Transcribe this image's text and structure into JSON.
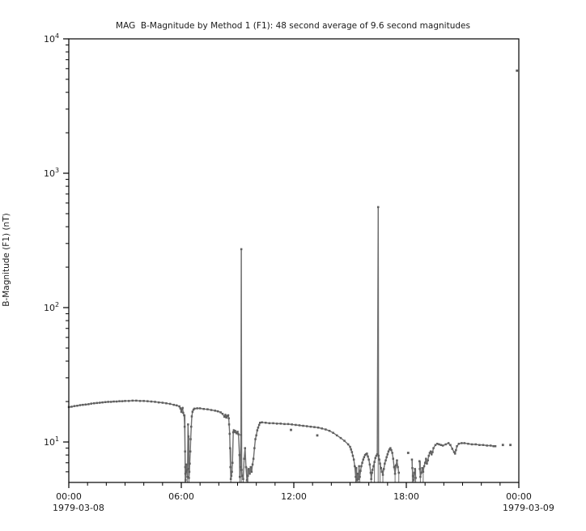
{
  "title": "MAG  B-Magnitude by Method 1 (F1): 48 second average of 9.6 second magnitudes",
  "colors": {
    "marker": "#5f5f5f",
    "line": "#6e6e6e",
    "axis": "#000000",
    "background": "#ffffff",
    "text": "#1a1a1a"
  },
  "chart_data": {
    "type": "scatter",
    "title": "MAG  B-Magnitude by Method 1 (F1): 48 second average of 9.6 second magnitudes",
    "ylabel": "B-Magnitude (F1) (nT)",
    "yscale": "log",
    "ylim": [
      5,
      10000
    ],
    "xlim_hours": [
      0,
      24
    ],
    "grid": false,
    "legend": "none",
    "x_date_left": "1979-03-08",
    "x_date_right": "1979-03-09",
    "x_ticks": [
      {
        "hour": 0,
        "label": "00:00"
      },
      {
        "hour": 6,
        "label": "06:00"
      },
      {
        "hour": 12,
        "label": "12:00"
      },
      {
        "hour": 18,
        "label": "18:00"
      },
      {
        "hour": 24,
        "label": "00:00"
      }
    ],
    "y_ticks": [
      {
        "value": 10,
        "base": "10",
        "exp": "1"
      },
      {
        "value": 100,
        "base": "10",
        "exp": "2"
      },
      {
        "value": 1000,
        "base": "10",
        "exp": "3"
      },
      {
        "value": 10000,
        "base": "10",
        "exp": "4"
      }
    ],
    "spikes": [
      [
        9.2,
        272
      ],
      [
        16.5,
        560
      ],
      [
        23.9,
        5800
      ]
    ],
    "segments": [
      [
        [
          0,
          18.2
        ],
        [
          0.15,
          18.3
        ],
        [
          0.3,
          18.5
        ],
        [
          0.45,
          18.6
        ],
        [
          0.6,
          18.8
        ],
        [
          0.75,
          18.9
        ],
        [
          0.9,
          19
        ],
        [
          1.05,
          19.1
        ],
        [
          1.2,
          19.3
        ],
        [
          1.35,
          19.4
        ],
        [
          1.5,
          19.5
        ],
        [
          1.65,
          19.6
        ],
        [
          1.8,
          19.7
        ],
        [
          1.95,
          19.8
        ],
        [
          2.1,
          19.9
        ],
        [
          2.25,
          19.9
        ],
        [
          2.4,
          20
        ],
        [
          2.55,
          20
        ],
        [
          2.7,
          20.1
        ],
        [
          2.85,
          20.1
        ],
        [
          3,
          20.2
        ],
        [
          3.2,
          20.2
        ],
        [
          3.4,
          20.3
        ],
        [
          3.6,
          20.3
        ],
        [
          3.8,
          20.2
        ],
        [
          4,
          20.2
        ],
        [
          4.2,
          20.1
        ],
        [
          4.4,
          20
        ],
        [
          4.6,
          19.9
        ],
        [
          4.8,
          19.7
        ],
        [
          5,
          19.6
        ],
        [
          5.2,
          19.4
        ],
        [
          5.4,
          19.2
        ],
        [
          5.6,
          18.9
        ],
        [
          5.75,
          18.7
        ],
        [
          5.9,
          18.4
        ],
        [
          5.95,
          17.8
        ],
        [
          6,
          16.8
        ],
        [
          6.03,
          17.5
        ],
        [
          6.07,
          17.9
        ],
        [
          6.1,
          16.5
        ],
        [
          6.15,
          15.8
        ],
        [
          6.18,
          13
        ],
        [
          6.2,
          8.5
        ],
        [
          6.21,
          6.5
        ],
        [
          6.22,
          5.8
        ],
        [
          6.23,
          5.2
        ],
        [
          6.25,
          6
        ],
        [
          6.28,
          6.8
        ],
        [
          6.3,
          6.2
        ],
        [
          6.33,
          5.5
        ],
        [
          6.36,
          13.5
        ],
        [
          6.38,
          11
        ],
        [
          6.4,
          6.3
        ],
        [
          6.41,
          5.4
        ],
        [
          6.43,
          6
        ],
        [
          6.45,
          6.9
        ],
        [
          6.48,
          8.5
        ],
        [
          6.5,
          10.5
        ],
        [
          6.53,
          13
        ],
        [
          6.56,
          15.5
        ],
        [
          6.6,
          16.8
        ],
        [
          6.65,
          17.4
        ],
        [
          6.7,
          17.7
        ],
        [
          6.85,
          17.8
        ],
        [
          7,
          17.8
        ],
        [
          7.2,
          17.6
        ],
        [
          7.4,
          17.5
        ],
        [
          7.6,
          17.3
        ],
        [
          7.8,
          17.1
        ],
        [
          7.95,
          16.9
        ],
        [
          8.1,
          16.6
        ],
        [
          8.2,
          16.2
        ],
        [
          8.3,
          15.4
        ],
        [
          8.35,
          15.9
        ],
        [
          8.4,
          15.2
        ],
        [
          8.45,
          15.6
        ],
        [
          8.5,
          15.8
        ],
        [
          8.53,
          15
        ],
        [
          8.55,
          13.5
        ],
        [
          8.58,
          11.5
        ],
        [
          8.6,
          9
        ],
        [
          8.62,
          6.5
        ],
        [
          8.64,
          5.3
        ],
        [
          8.67,
          5.6
        ],
        [
          8.7,
          6
        ],
        [
          8.73,
          7
        ],
        [
          8.77,
          11.8
        ],
        [
          8.8,
          12.2
        ],
        [
          8.83,
          11.9
        ],
        [
          8.87,
          12.1
        ],
        [
          8.9,
          11.8
        ],
        [
          8.95,
          11.6
        ],
        [
          9,
          11.9
        ],
        [
          9.05,
          11.4
        ],
        [
          9.1,
          8
        ],
        [
          9.12,
          5.5
        ],
        [
          9.15,
          6.5
        ],
        [
          9.18,
          11.3
        ],
        [
          9.2,
          272
        ],
        [
          9.22,
          6.2
        ],
        [
          9.25,
          5.6
        ],
        [
          9.3,
          5.3
        ],
        [
          9.35,
          7.5
        ],
        [
          9.4,
          9
        ],
        [
          9.45,
          6.5
        ],
        [
          9.5,
          5.2
        ],
        [
          9.55,
          5.6
        ],
        [
          9.6,
          6.3
        ],
        [
          9.65,
          5.8
        ],
        [
          9.7,
          6.5
        ],
        [
          9.75,
          6
        ],
        [
          9.8,
          6.8
        ],
        [
          9.85,
          7.5
        ],
        [
          9.9,
          9
        ],
        [
          9.95,
          10.5
        ],
        [
          10,
          11.2
        ],
        [
          10.05,
          12.2
        ],
        [
          10.1,
          12.8
        ],
        [
          10.15,
          13.4
        ],
        [
          10.2,
          13.9
        ],
        [
          10.3,
          14
        ],
        [
          10.5,
          13.9
        ],
        [
          10.7,
          13.8
        ],
        [
          10.9,
          13.8
        ],
        [
          11.1,
          13.7
        ],
        [
          11.3,
          13.7
        ],
        [
          11.5,
          13.6
        ],
        [
          11.7,
          13.6
        ],
        [
          11.9,
          13.5
        ],
        [
          12.1,
          13.4
        ],
        [
          12.3,
          13.3
        ],
        [
          12.5,
          13.2
        ],
        [
          12.7,
          13.1
        ],
        [
          12.9,
          13
        ],
        [
          13.1,
          12.9
        ],
        [
          13.3,
          12.8
        ],
        [
          13.5,
          12.6
        ],
        [
          13.7,
          12.4
        ],
        [
          13.9,
          12.1
        ],
        [
          14.1,
          11.7
        ],
        [
          14.3,
          11.2
        ],
        [
          14.5,
          10.7
        ],
        [
          14.7,
          10.2
        ],
        [
          14.9,
          9.6
        ],
        [
          15,
          9.2
        ],
        [
          15.05,
          8.8
        ],
        [
          15.1,
          8.4
        ],
        [
          15.15,
          7.9
        ],
        [
          15.2,
          7.4
        ],
        [
          15.25,
          6.6
        ],
        [
          15.3,
          5.5
        ],
        [
          15.33,
          6.4
        ],
        [
          15.36,
          5.2
        ],
        [
          15.4,
          5.8
        ],
        [
          15.44,
          5.3
        ],
        [
          15.48,
          6.6
        ],
        [
          15.52,
          5.5
        ],
        [
          15.56,
          6.1
        ],
        [
          15.6,
          6.6
        ],
        [
          15.65,
          7
        ],
        [
          15.7,
          7.4
        ],
        [
          15.75,
          7.7
        ],
        [
          15.8,
          8
        ],
        [
          15.85,
          8.1
        ],
        [
          15.9,
          8.2
        ],
        [
          15.95,
          7.8
        ],
        [
          16,
          7.4
        ],
        [
          16.05,
          6.8
        ],
        [
          16.1,
          5.9
        ],
        [
          16.13,
          5.3
        ],
        [
          16.17,
          5.9
        ],
        [
          16.2,
          6.2
        ],
        [
          16.25,
          6.6
        ],
        [
          16.3,
          7.1
        ],
        [
          16.35,
          7.6
        ],
        [
          16.4,
          7.9
        ],
        [
          16.45,
          8.1
        ],
        [
          16.5,
          560
        ],
        [
          16.52,
          7.9
        ],
        [
          16.56,
          7.4
        ],
        [
          16.6,
          6.9
        ],
        [
          16.65,
          6.4
        ],
        [
          16.7,
          6
        ],
        [
          16.75,
          5.7
        ],
        [
          16.8,
          6.3
        ],
        [
          16.85,
          6.9
        ],
        [
          16.9,
          7.3
        ],
        [
          16.95,
          7.7
        ],
        [
          17,
          8.1
        ],
        [
          17.05,
          8.5
        ],
        [
          17.1,
          8.8
        ],
        [
          17.15,
          9
        ],
        [
          17.2,
          8.7
        ],
        [
          17.25,
          8.3
        ],
        [
          17.3,
          7.5
        ],
        [
          17.35,
          6.5
        ],
        [
          17.4,
          5.8
        ],
        [
          17.45,
          6.7
        ],
        [
          17.5,
          7.3
        ],
        [
          17.55,
          6.5
        ],
        [
          17.6,
          5.9
        ]
      ],
      [
        [
          18.3,
          7.4
        ],
        [
          18.32,
          6.4
        ],
        [
          18.35,
          5.6
        ],
        [
          18.4,
          5.2
        ],
        [
          18.43,
          5.9
        ],
        [
          18.46,
          6.3
        ],
        [
          18.5,
          5.4
        ]
      ],
      [
        [
          18.7,
          7.2
        ],
        [
          18.72,
          6.3
        ],
        [
          18.75,
          5.5
        ],
        [
          18.8,
          5.9
        ],
        [
          18.85,
          6.4
        ],
        [
          18.9,
          6
        ],
        [
          18.95,
          6.6
        ],
        [
          19,
          7
        ],
        [
          19.05,
          7.5
        ],
        [
          19.1,
          6.9
        ],
        [
          19.15,
          7.3
        ],
        [
          19.2,
          7.9
        ],
        [
          19.25,
          8.3
        ],
        [
          19.3,
          8.5
        ],
        [
          19.35,
          8.1
        ],
        [
          19.4,
          8.4
        ],
        [
          19.45,
          9
        ],
        [
          19.55,
          9.5
        ],
        [
          19.65,
          9.7
        ],
        [
          19.75,
          9.6
        ],
        [
          19.85,
          9.5
        ],
        [
          19.95,
          9.4
        ],
        [
          20.1,
          9.6
        ],
        [
          20.25,
          9.8
        ],
        [
          20.35,
          9.5
        ],
        [
          20.45,
          8.9
        ],
        [
          20.55,
          8.4
        ],
        [
          20.6,
          8.2
        ],
        [
          20.65,
          8.7
        ],
        [
          20.7,
          9.3
        ],
        [
          20.8,
          9.7
        ],
        [
          20.95,
          9.8
        ],
        [
          21.1,
          9.8
        ],
        [
          21.3,
          9.7
        ],
        [
          21.5,
          9.6
        ],
        [
          21.7,
          9.6
        ],
        [
          21.9,
          9.5
        ],
        [
          22.1,
          9.5
        ],
        [
          22.3,
          9.4
        ],
        [
          22.5,
          9.4
        ],
        [
          22.65,
          9.3
        ],
        [
          22.75,
          9.3
        ]
      ]
    ],
    "isolated_points": [
      [
        11.85,
        12.3
      ],
      [
        13.25,
        11.2
      ],
      [
        18.1,
        8.3
      ],
      [
        23.15,
        9.5
      ],
      [
        23.55,
        9.5
      ],
      [
        23.9,
        5800
      ]
    ],
    "droplines": [
      [
        6.2,
        16
      ],
      [
        6.23,
        6
      ],
      [
        6.33,
        6.2
      ],
      [
        6.41,
        11
      ],
      [
        8.64,
        9
      ],
      [
        9.12,
        8
      ],
      [
        9.2,
        272
      ],
      [
        9.3,
        5.6
      ],
      [
        9.5,
        6.5
      ],
      [
        9.55,
        6.3
      ],
      [
        15.3,
        6.6
      ],
      [
        15.36,
        6.4
      ],
      [
        15.44,
        5.8
      ],
      [
        15.52,
        6.1
      ],
      [
        16.13,
        5.9
      ],
      [
        16.3,
        7.1
      ],
      [
        16.5,
        560
      ],
      [
        16.6,
        6.9
      ],
      [
        16.75,
        6.3
      ],
      [
        17.4,
        6.7
      ],
      [
        17.6,
        5.9
      ],
      [
        18.32,
        7.4
      ],
      [
        18.4,
        5.9
      ],
      [
        18.5,
        6.3
      ],
      [
        18.75,
        7.2
      ],
      [
        18.9,
        6.4
      ]
    ]
  }
}
